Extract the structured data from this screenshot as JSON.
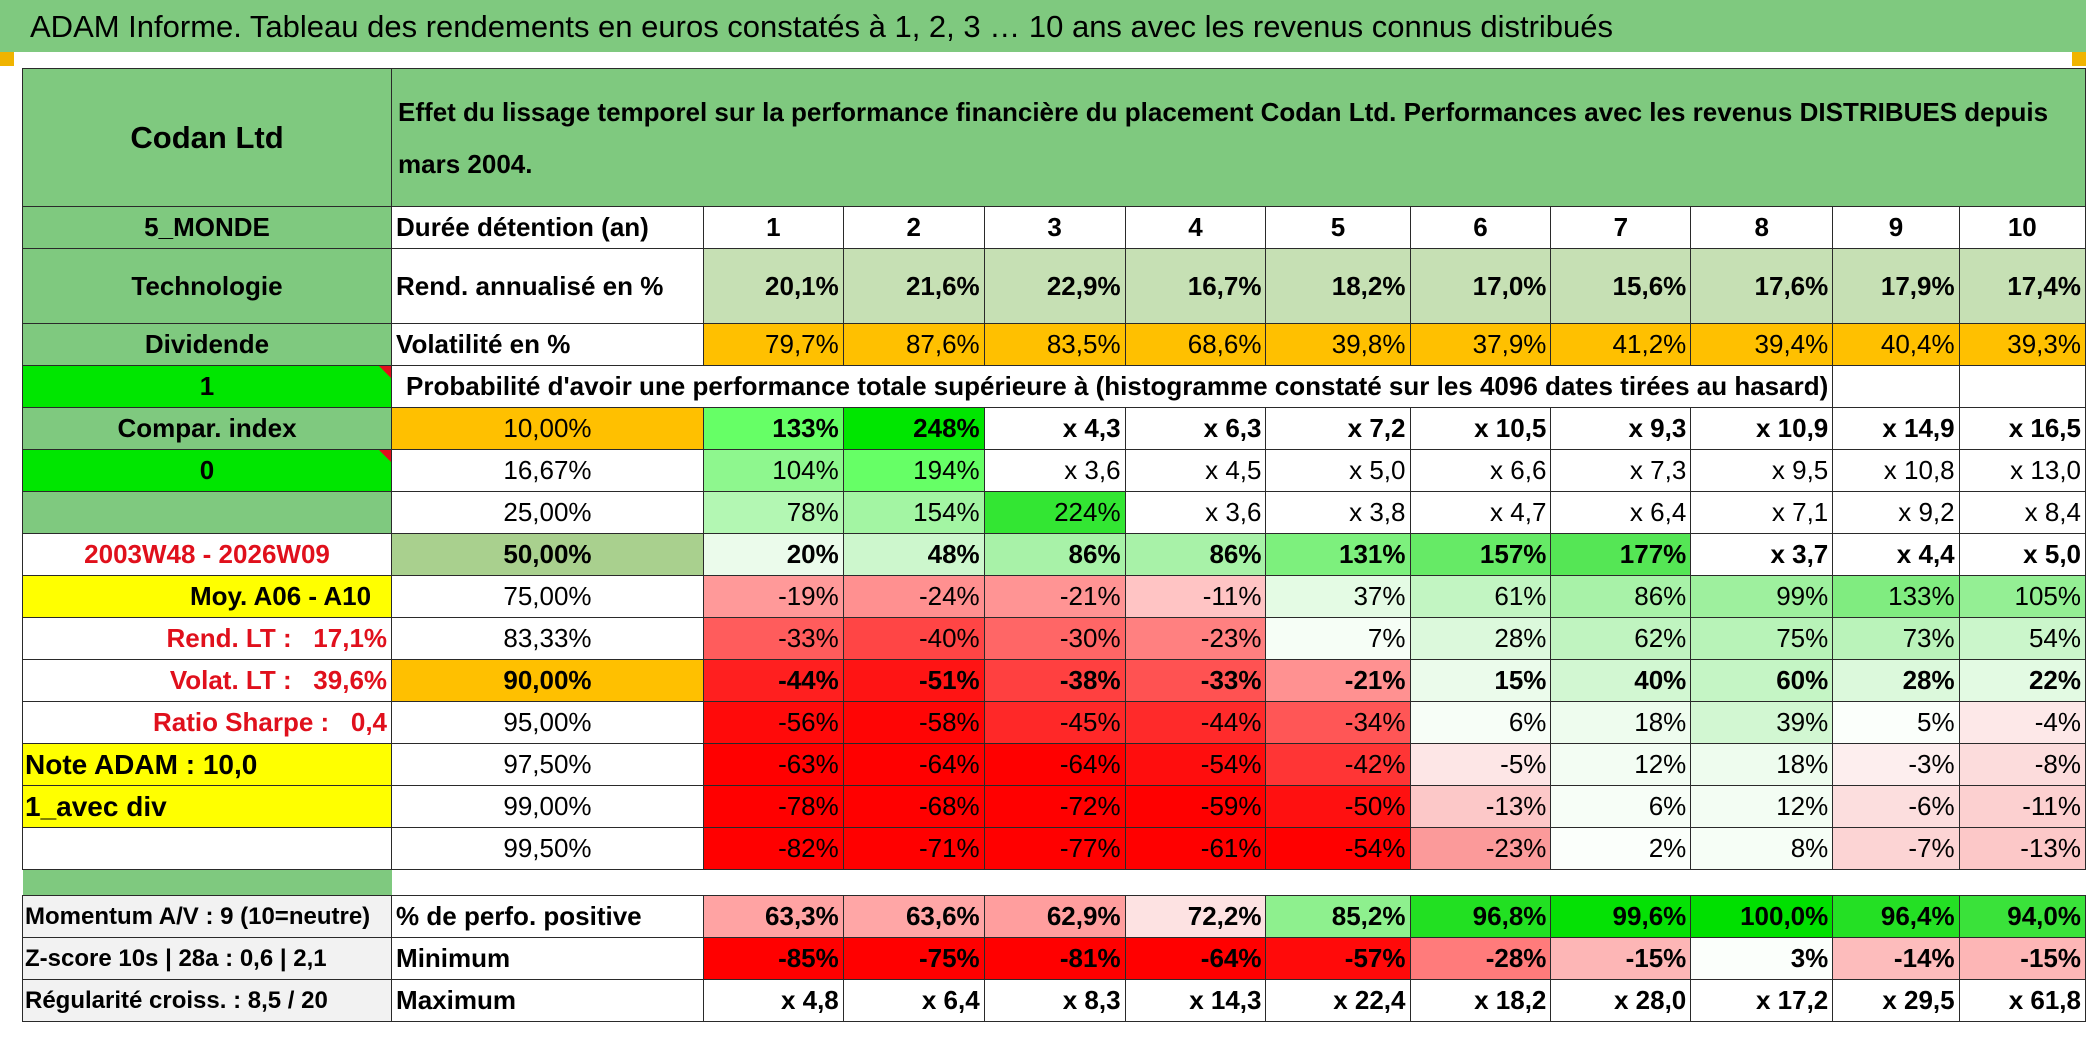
{
  "title": "ADAM Informe. Tableau des rendements en euros constatés à 1, 2, 3 … 10 ans avec les revenus connus distribués",
  "company": "Codan Ltd",
  "description": "Effet du lissage temporel sur la performance financière du placement Codan Ltd. Performances avec les revenus DISTRIBUES depuis mars 2004.",
  "left": {
    "region": "5_MONDE",
    "sector": "Technologie",
    "dividend": "Dividende",
    "flag1": "1",
    "compar": "Compar. index",
    "flag0": "0",
    "period": "2003W48 - 2026W09",
    "moy": "Moy. A06 - A10",
    "rend_label": "Rend. LT :",
    "rend_value": "17,1%",
    "volat_label": "Volat. LT :",
    "volat_value": "39,6%",
    "sharpe_label": "Ratio Sharpe :",
    "sharpe_value": "0,4",
    "note": "Note ADAM : 10,0",
    "div_mode": "1_avec div",
    "momentum": "Momentum A/V : 9 (10=neutre)",
    "zscore": "Z-score 10s | 28a : 0,6 | 2,1",
    "regularite": "Régularité croiss. : 8,5 / 20"
  },
  "header": {
    "label": "Durée détention (an)",
    "years": [
      "1",
      "2",
      "3",
      "4",
      "5",
      "6",
      "7",
      "8",
      "9",
      "10"
    ]
  },
  "rend": {
    "label": "Rend. annualisé en %",
    "values": [
      "20,1%",
      "21,6%",
      "22,9%",
      "16,7%",
      "18,2%",
      "17,0%",
      "15,6%",
      "17,6%",
      "17,9%",
      "17,4%"
    ]
  },
  "volat": {
    "label": "Volatilité en %",
    "values": [
      "79,7%",
      "87,6%",
      "83,5%",
      "68,6%",
      "39,8%",
      "37,9%",
      "41,2%",
      "39,4%",
      "40,4%",
      "39,3%"
    ]
  },
  "prob_caption": "Probabilité d'avoir une performance totale supérieure à (histogramme constaté sur les 4096 dates tirées au hasard)",
  "percentiles": [
    {
      "p": "10,00%",
      "values": [
        "133%",
        "248%",
        "x 4,3",
        "x 6,3",
        "x 7,2",
        "x 10,5",
        "x 9,3",
        "x 10,9",
        "x 14,9",
        "x 16,5"
      ]
    },
    {
      "p": "16,67%",
      "values": [
        "104%",
        "194%",
        "x 3,6",
        "x 4,5",
        "x 5,0",
        "x 6,6",
        "x 7,3",
        "x 9,5",
        "x 10,8",
        "x 13,0"
      ]
    },
    {
      "p": "25,00%",
      "values": [
        "78%",
        "154%",
        "224%",
        "x 3,6",
        "x 3,8",
        "x 4,7",
        "x 6,4",
        "x 7,1",
        "x 9,2",
        "x 8,4"
      ]
    },
    {
      "p": "50,00%",
      "values": [
        "20%",
        "48%",
        "86%",
        "86%",
        "131%",
        "157%",
        "177%",
        "x 3,7",
        "x 4,4",
        "x 5,0"
      ]
    },
    {
      "p": "75,00%",
      "values": [
        "-19%",
        "-24%",
        "-21%",
        "-11%",
        "37%",
        "61%",
        "86%",
        "99%",
        "133%",
        "105%"
      ]
    },
    {
      "p": "83,33%",
      "values": [
        "-33%",
        "-40%",
        "-30%",
        "-23%",
        "7%",
        "28%",
        "62%",
        "75%",
        "73%",
        "54%"
      ]
    },
    {
      "p": "90,00%",
      "values": [
        "-44%",
        "-51%",
        "-38%",
        "-33%",
        "-21%",
        "15%",
        "40%",
        "60%",
        "28%",
        "22%"
      ]
    },
    {
      "p": "95,00%",
      "values": [
        "-56%",
        "-58%",
        "-45%",
        "-44%",
        "-34%",
        "6%",
        "18%",
        "39%",
        "5%",
        "-4%"
      ]
    },
    {
      "p": "97,50%",
      "values": [
        "-63%",
        "-64%",
        "-64%",
        "-54%",
        "-42%",
        "-5%",
        "12%",
        "18%",
        "-3%",
        "-8%"
      ]
    },
    {
      "p": "99,00%",
      "values": [
        "-78%",
        "-68%",
        "-72%",
        "-59%",
        "-50%",
        "-13%",
        "6%",
        "12%",
        "-6%",
        "-11%"
      ]
    },
    {
      "p": "99,50%",
      "values": [
        "-82%",
        "-71%",
        "-77%",
        "-61%",
        "-54%",
        "-23%",
        "2%",
        "8%",
        "-7%",
        "-13%"
      ]
    }
  ],
  "positive": {
    "label": "% de perfo. positive",
    "values": [
      "63,3%",
      "63,6%",
      "62,9%",
      "72,2%",
      "85,2%",
      "96,8%",
      "99,6%",
      "100,0%",
      "96,4%",
      "94,0%"
    ]
  },
  "minimum": {
    "label": "Minimum",
    "values": [
      "-85%",
      "-75%",
      "-81%",
      "-64%",
      "-57%",
      "-28%",
      "-15%",
      "3%",
      "-14%",
      "-15%"
    ]
  },
  "maximum": {
    "label": "Maximum",
    "values": [
      "x 4,8",
      "x 6,4",
      "x 8,3",
      "x 14,3",
      "x 22,4",
      "x 18,2",
      "x 28,0",
      "x 17,2",
      "x 29,5",
      "x 61,8"
    ]
  },
  "colors": {
    "header_green": "#7fc97f",
    "bright_green": "#00e600",
    "yellow": "#ffff00",
    "orange": "#ffc000",
    "red_text": "#e0101c",
    "light_green": "#c6e0b4",
    "sage": "#a9d08e"
  }
}
